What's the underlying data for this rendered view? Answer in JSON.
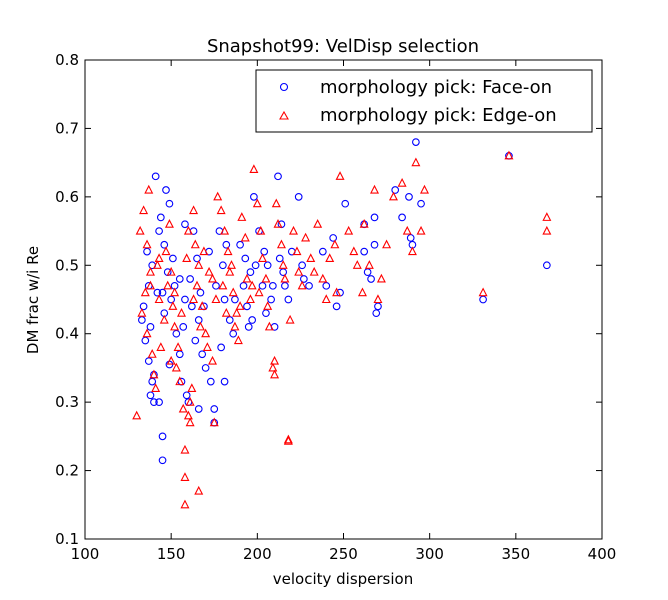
{
  "chart_data": {
    "type": "scatter",
    "title": "Snapshot99: VelDisp selection",
    "xlabel": "velocity dispersion",
    "ylabel": "DM frac w/i Re",
    "xlim": [
      100,
      400
    ],
    "ylim": [
      0.1,
      0.8
    ],
    "xticks": [
      "100",
      "150",
      "200",
      "250",
      "300",
      "350",
      "400"
    ],
    "yticks": [
      "0.1",
      "0.2",
      "0.3",
      "0.4",
      "0.5",
      "0.6",
      "0.7",
      "0.8"
    ],
    "grid": false,
    "legend_position": "top-right",
    "series": [
      {
        "name": "morphology pick: Face-on",
        "marker": "circle",
        "color": "#0000ff",
        "points": [
          [
            141,
            0.63
          ],
          [
            144,
            0.57
          ],
          [
            143,
            0.55
          ],
          [
            136,
            0.52
          ],
          [
            139,
            0.5
          ],
          [
            137,
            0.47
          ],
          [
            134,
            0.44
          ],
          [
            133,
            0.42
          ],
          [
            138,
            0.41
          ],
          [
            135,
            0.39
          ],
          [
            137,
            0.36
          ],
          [
            140,
            0.34
          ],
          [
            139,
            0.33
          ],
          [
            138,
            0.31
          ],
          [
            140,
            0.3
          ],
          [
            143,
            0.3
          ],
          [
            145,
            0.25
          ],
          [
            145,
            0.215
          ],
          [
            147,
            0.61
          ],
          [
            149,
            0.59
          ],
          [
            146,
            0.53
          ],
          [
            148,
            0.49
          ],
          [
            152,
            0.47
          ],
          [
            150,
            0.45
          ],
          [
            146,
            0.43
          ],
          [
            153,
            0.4
          ],
          [
            155,
            0.37
          ],
          [
            149,
            0.355
          ],
          [
            156,
            0.33
          ],
          [
            159,
            0.31
          ],
          [
            160,
            0.3
          ],
          [
            166,
            0.29
          ],
          [
            158,
            0.56
          ],
          [
            163,
            0.55
          ],
          [
            165,
            0.51
          ],
          [
            161,
            0.48
          ],
          [
            162,
            0.44
          ],
          [
            166,
            0.42
          ],
          [
            164,
            0.39
          ],
          [
            168,
            0.37
          ],
          [
            170,
            0.35
          ],
          [
            173,
            0.33
          ],
          [
            175,
            0.29
          ],
          [
            175,
            0.27
          ],
          [
            178,
            0.55
          ],
          [
            182,
            0.53
          ],
          [
            180,
            0.5
          ],
          [
            176,
            0.47
          ],
          [
            181,
            0.45
          ],
          [
            184,
            0.42
          ],
          [
            186,
            0.4
          ],
          [
            179,
            0.38
          ],
          [
            181,
            0.33
          ],
          [
            190,
            0.53
          ],
          [
            193,
            0.51
          ],
          [
            196,
            0.49
          ],
          [
            192,
            0.47
          ],
          [
            194,
            0.44
          ],
          [
            197,
            0.42
          ],
          [
            195,
            0.41
          ],
          [
            198,
            0.6
          ],
          [
            201,
            0.55
          ],
          [
            204,
            0.52
          ],
          [
            206,
            0.5
          ],
          [
            203,
            0.47
          ],
          [
            208,
            0.45
          ],
          [
            205,
            0.43
          ],
          [
            210,
            0.41
          ],
          [
            212,
            0.63
          ],
          [
            214,
            0.56
          ],
          [
            213,
            0.51
          ],
          [
            215,
            0.49
          ],
          [
            216,
            0.47
          ],
          [
            218,
            0.45
          ],
          [
            220,
            0.52
          ],
          [
            224,
            0.6
          ],
          [
            226,
            0.5
          ],
          [
            227,
            0.48
          ],
          [
            230,
            0.47
          ],
          [
            238,
            0.52
          ],
          [
            240,
            0.47
          ],
          [
            244,
            0.54
          ],
          [
            246,
            0.44
          ],
          [
            248,
            0.46
          ],
          [
            251,
            0.59
          ],
          [
            262,
            0.52
          ],
          [
            262,
            0.56
          ],
          [
            264,
            0.49
          ],
          [
            266,
            0.48
          ],
          [
            268,
            0.53
          ],
          [
            268,
            0.57
          ],
          [
            269,
            0.43
          ],
          [
            270,
            0.44
          ],
          [
            280,
            0.61
          ],
          [
            284,
            0.57
          ],
          [
            288,
            0.6
          ],
          [
            289,
            0.54
          ],
          [
            290,
            0.53
          ],
          [
            292,
            0.68
          ],
          [
            295,
            0.59
          ],
          [
            331,
            0.45
          ],
          [
            346,
            0.66
          ],
          [
            368,
            0.5
          ],
          [
            142,
            0.46
          ],
          [
            151,
            0.51
          ],
          [
            157,
            0.41
          ],
          [
            167,
            0.46
          ],
          [
            172,
            0.52
          ],
          [
            187,
            0.45
          ],
          [
            199,
            0.5
          ],
          [
            209,
            0.47
          ],
          [
            155,
            0.48
          ],
          [
            145,
            0.46
          ],
          [
            158,
            0.45
          ],
          [
            169,
            0.44
          ]
        ]
      },
      {
        "name": "morphology pick: Edge-on",
        "marker": "triangle",
        "color": "#ff0000",
        "points": [
          [
            130,
            0.28
          ],
          [
            132,
            0.55
          ],
          [
            134,
            0.58
          ],
          [
            137,
            0.61
          ],
          [
            136,
            0.53
          ],
          [
            138,
            0.49
          ],
          [
            135,
            0.46
          ],
          [
            133,
            0.43
          ],
          [
            136,
            0.4
          ],
          [
            139,
            0.37
          ],
          [
            140,
            0.34
          ],
          [
            141,
            0.32
          ],
          [
            143,
            0.45
          ],
          [
            147,
            0.52
          ],
          [
            149,
            0.56
          ],
          [
            148,
            0.47
          ],
          [
            151,
            0.44
          ],
          [
            152,
            0.41
          ],
          [
            154,
            0.38
          ],
          [
            153,
            0.35
          ],
          [
            155,
            0.33
          ],
          [
            157,
            0.29
          ],
          [
            158,
            0.23
          ],
          [
            158,
            0.19
          ],
          [
            158,
            0.15
          ],
          [
            160,
            0.28
          ],
          [
            161,
            0.27
          ],
          [
            161,
            0.3
          ],
          [
            162,
            0.32
          ],
          [
            160,
            0.55
          ],
          [
            163,
            0.58
          ],
          [
            164,
            0.53
          ],
          [
            166,
            0.5
          ],
          [
            165,
            0.47
          ],
          [
            168,
            0.44
          ],
          [
            170,
            0.4
          ],
          [
            171,
            0.38
          ],
          [
            174,
            0.36
          ],
          [
            175,
            0.27
          ],
          [
            166,
            0.17
          ],
          [
            177,
            0.6
          ],
          [
            179,
            0.58
          ],
          [
            181,
            0.55
          ],
          [
            183,
            0.52
          ],
          [
            184,
            0.49
          ],
          [
            186,
            0.46
          ],
          [
            188,
            0.43
          ],
          [
            187,
            0.41
          ],
          [
            189,
            0.39
          ],
          [
            191,
            0.57
          ],
          [
            193,
            0.54
          ],
          [
            194,
            0.48
          ],
          [
            196,
            0.45
          ],
          [
            198,
            0.64
          ],
          [
            200,
            0.59
          ],
          [
            202,
            0.55
          ],
          [
            203,
            0.51
          ],
          [
            205,
            0.48
          ],
          [
            206,
            0.44
          ],
          [
            207,
            0.41
          ],
          [
            209,
            0.35
          ],
          [
            210,
            0.34
          ],
          [
            210,
            0.36
          ],
          [
            211,
            0.59
          ],
          [
            212,
            0.56
          ],
          [
            214,
            0.53
          ],
          [
            215,
            0.5
          ],
          [
            216,
            0.48
          ],
          [
            218,
            0.245
          ],
          [
            218,
            0.243
          ],
          [
            219,
            0.42
          ],
          [
            221,
            0.55
          ],
          [
            223,
            0.52
          ],
          [
            224,
            0.49
          ],
          [
            226,
            0.47
          ],
          [
            228,
            0.54
          ],
          [
            231,
            0.51
          ],
          [
            233,
            0.49
          ],
          [
            235,
            0.56
          ],
          [
            238,
            0.48
          ],
          [
            240,
            0.45
          ],
          [
            242,
            0.51
          ],
          [
            245,
            0.53
          ],
          [
            246,
            0.46
          ],
          [
            248,
            0.63
          ],
          [
            253,
            0.55
          ],
          [
            256,
            0.52
          ],
          [
            258,
            0.5
          ],
          [
            261,
            0.46
          ],
          [
            262,
            0.56
          ],
          [
            265,
            0.5
          ],
          [
            268,
            0.61
          ],
          [
            270,
            0.45
          ],
          [
            272,
            0.48
          ],
          [
            275,
            0.53
          ],
          [
            279,
            0.6
          ],
          [
            284,
            0.62
          ],
          [
            287,
            0.55
          ],
          [
            290,
            0.52
          ],
          [
            292,
            0.65
          ],
          [
            295,
            0.55
          ],
          [
            297,
            0.61
          ],
          [
            331,
            0.46
          ],
          [
            346,
            0.66
          ],
          [
            368,
            0.57
          ],
          [
            368,
            0.55
          ],
          [
            142,
            0.5
          ],
          [
            146,
            0.42
          ],
          [
            150,
            0.49
          ],
          [
            156,
            0.43
          ],
          [
            159,
            0.51
          ],
          [
            167,
            0.41
          ],
          [
            172,
            0.49
          ],
          [
            176,
            0.45
          ],
          [
            180,
            0.47
          ],
          [
            185,
            0.5
          ],
          [
            190,
            0.44
          ],
          [
            197,
            0.47
          ],
          [
            144,
            0.38
          ],
          [
            150,
            0.36
          ],
          [
            138,
            0.47
          ],
          [
            143,
            0.51
          ],
          [
            152,
            0.46
          ],
          [
            163,
            0.45
          ],
          [
            169,
            0.52
          ],
          [
            174,
            0.48
          ],
          [
            182,
            0.43
          ],
          [
            201,
            0.46
          ]
        ]
      }
    ]
  }
}
